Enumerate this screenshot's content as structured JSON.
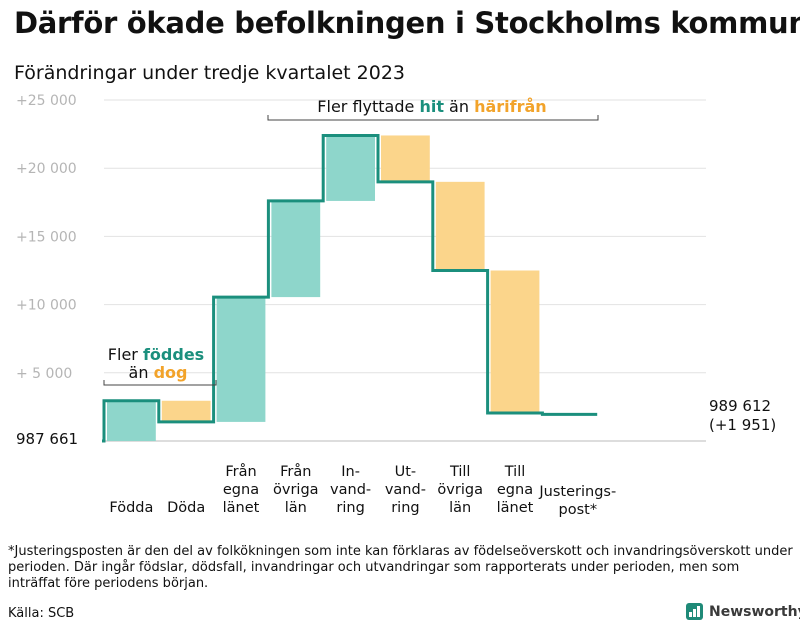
{
  "header": {
    "title": "Därför ökade befolkningen i Stockholms kommun",
    "subtitle": "Förändringar under tredje kvartalet 2023"
  },
  "colors": {
    "increase": "#8ed6cb",
    "decrease": "#fbd58b",
    "line": "#1b8f7d",
    "hit": "#1b8f7d",
    "harifran": "#f2a32a",
    "axis": "#bbbbbb",
    "grid": "#e2e2e2"
  },
  "chart_data": {
    "type": "waterfall",
    "title": "Därför ökade befolkningen i Stockholms kommun",
    "subtitle": "Förändringar under tredje kvartalet 2023",
    "ylabel": "",
    "ylim": [
      0,
      25000
    ],
    "yticks": [
      5000,
      10000,
      15000,
      20000,
      25000
    ],
    "ytick_labels": [
      "+ 5 000",
      "+10 000",
      "+15 000",
      "+20 000",
      "+25 000"
    ],
    "start_label": "987 661",
    "start_value": 987661,
    "end_label": "989 612",
    "end_change": "(+1 951)",
    "end_value": 989612,
    "net_change": 1951,
    "steps": [
      {
        "label": "Födda",
        "change": 2950,
        "cumulative": 2950,
        "kind": "increase"
      },
      {
        "label": "Döda",
        "change": -1550,
        "cumulative": 1400,
        "kind": "decrease"
      },
      {
        "label": "Från egna länet",
        "change": 9150,
        "cumulative": 10550,
        "kind": "increase"
      },
      {
        "label": "Från övriga län",
        "change": 7050,
        "cumulative": 17600,
        "kind": "increase"
      },
      {
        "label": "In-vandring",
        "change": 4800,
        "cumulative": 22400,
        "kind": "increase"
      },
      {
        "label": "Ut-vandring",
        "change": -3400,
        "cumulative": 19000,
        "kind": "decrease"
      },
      {
        "label": "Till övriga län",
        "change": -6500,
        "cumulative": 12500,
        "kind": "decrease"
      },
      {
        "label": "Till egna länet",
        "change": -10450,
        "cumulative": 2050,
        "kind": "decrease"
      },
      {
        "label": "Justerings-post*",
        "change": -99,
        "cumulative": 1951,
        "kind": "adjustment"
      }
    ],
    "x_labels": [
      {
        "lines": [
          "Födda"
        ]
      },
      {
        "lines": [
          "Döda"
        ]
      },
      {
        "lines": [
          "Från",
          "egna",
          "länet"
        ]
      },
      {
        "lines": [
          "Från",
          "övriga",
          "län"
        ]
      },
      {
        "lines": [
          "In-",
          "vand-",
          "ring"
        ]
      },
      {
        "lines": [
          "Ut-",
          "vand-",
          "ring"
        ]
      },
      {
        "lines": [
          "Till",
          "övriga",
          "län"
        ]
      },
      {
        "lines": [
          "Till",
          "egna",
          "länet"
        ]
      },
      {
        "lines": [
          "Justerings-",
          "post*"
        ]
      }
    ],
    "annotations": {
      "births": {
        "line1": "Fler ",
        "line1_em": "föddes",
        "line2": "än ",
        "line2_em": "dog"
      },
      "migration": {
        "pre": "Fler flyttade ",
        "em1": "hit",
        "mid": " än ",
        "em2": "härifrån"
      }
    }
  },
  "footnote": "*Justeringsposten är den del av folkökningen som inte kan förklaras av födelseöverskott och invandringsöverskott under perioden. Där ingår födslar, dödsfall, invandringar och utvandringar som rapporterats under perioden, men som inträffat före periodens början.",
  "source": "Källa: SCB",
  "brand": {
    "name": "Newsworthy",
    "icon": "bar-chart-icon"
  }
}
